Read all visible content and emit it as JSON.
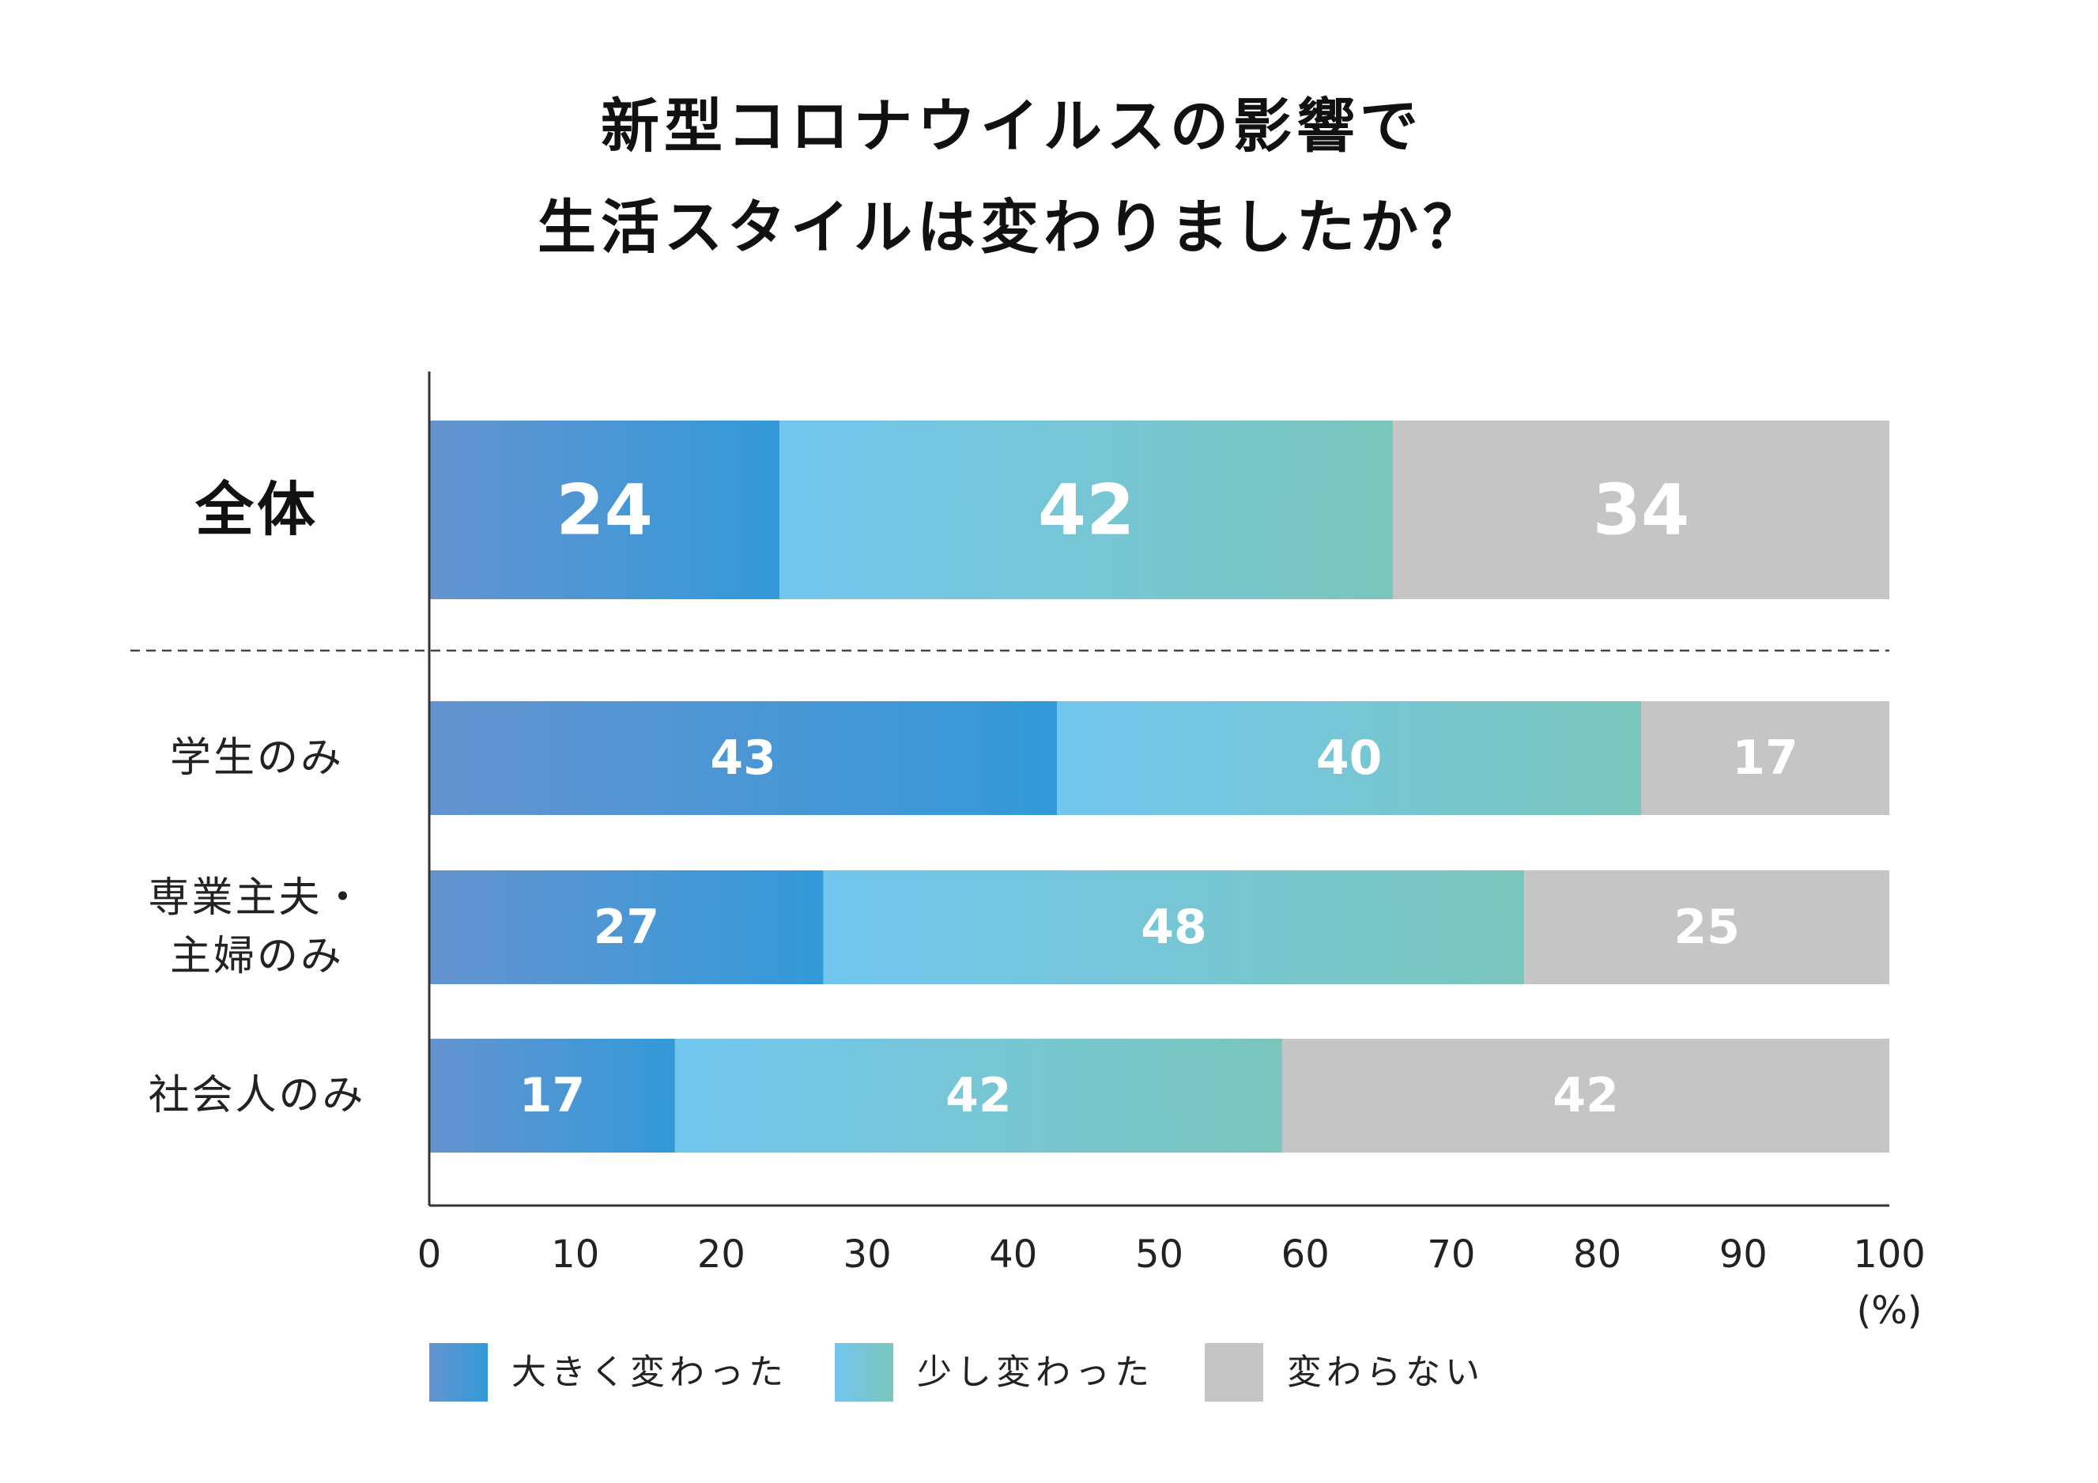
{
  "chart_data": {
    "type": "bar",
    "orientation": "horizontal",
    "stacked": true,
    "title": [
      "新型コロナウイルスの影響で",
      "生活スタイルは変わりましたか？"
    ],
    "categories": [
      {
        "label": [
          "全体"
        ],
        "emphasis": true
      },
      {
        "label": [
          "学生のみ"
        ],
        "emphasis": false
      },
      {
        "label": [
          "専業主夫・",
          "主婦のみ"
        ],
        "emphasis": false
      },
      {
        "label": [
          "社会人のみ"
        ],
        "emphasis": false
      }
    ],
    "series": [
      {
        "name": "大きく変わった",
        "values": [
          24,
          43,
          27,
          17
        ],
        "color_start": "#6494d0",
        "color_end": "#3399d8"
      },
      {
        "name": "少し変わった",
        "values": [
          42,
          40,
          48,
          42
        ],
        "color_start": "#72c6ee",
        "color_end": "#7ac6bc"
      },
      {
        "name": "変わらない",
        "values": [
          34,
          17,
          25,
          42
        ],
        "color_start": "#c4c5c4",
        "color_end": "#c4c5c4"
      }
    ],
    "xlim": [
      0,
      100
    ],
    "xticks": [
      "0",
      "10",
      "20",
      "30",
      "40",
      "50",
      "60",
      "70",
      "80",
      "90",
      "100"
    ],
    "xunit": "(%)",
    "legend_position": "bottom",
    "separator": "dashed line between 全体 and the groups"
  }
}
